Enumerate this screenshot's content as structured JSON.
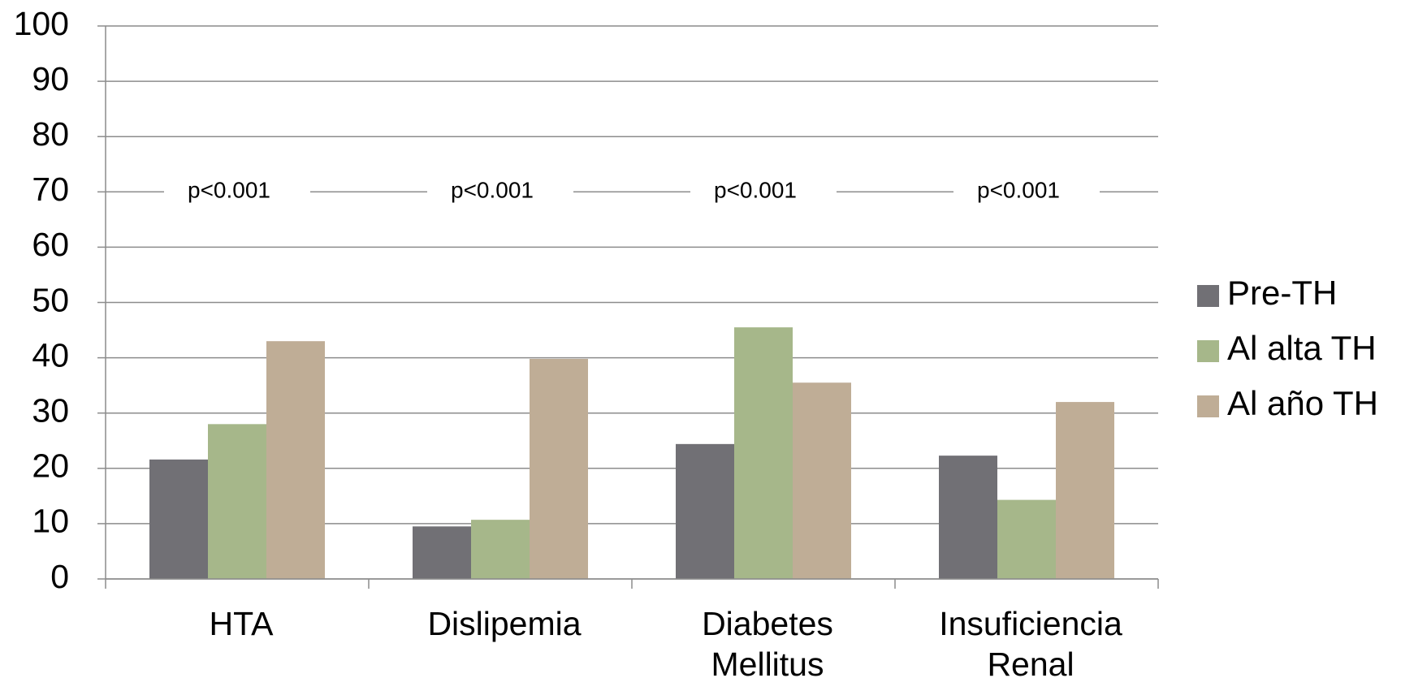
{
  "chart_data": {
    "type": "bar",
    "categories": [
      "HTA",
      "Dislipemia",
      "Diabetes Mellitus",
      "Insuficiencia Renal"
    ],
    "series": [
      {
        "name": "Pre-TH",
        "color": "#717075",
        "values": [
          21.6,
          9.5,
          24.4,
          22.3
        ]
      },
      {
        "name": "Al alta TH",
        "color": "#a6b78a",
        "values": [
          28,
          10.7,
          45.5,
          14.3
        ]
      },
      {
        "name": "Al año TH",
        "color": "#bfad96",
        "values": [
          43,
          39.8,
          35.5,
          32
        ]
      }
    ],
    "annotations": [
      "p<0.001",
      "p<0.001",
      "p<0.001",
      "p<0.001"
    ],
    "ylim": [
      0,
      100
    ],
    "yticks": [
      0,
      10,
      20,
      30,
      40,
      50,
      60,
      70,
      80,
      90,
      100
    ],
    "grid": true,
    "legend": "right"
  }
}
